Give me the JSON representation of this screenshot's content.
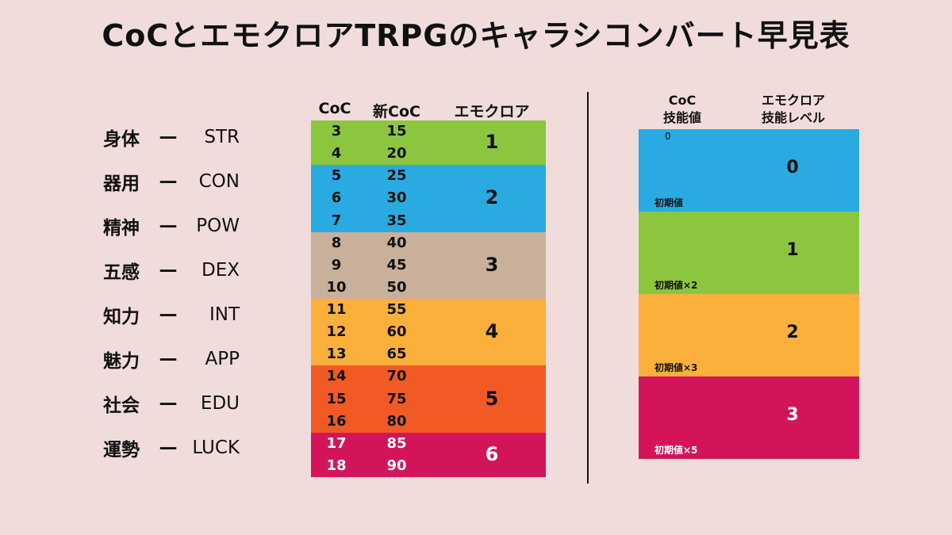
{
  "title": "CoCとエモクロアTRPGのキャラシコンバート早見表",
  "attributes": [
    {
      "ja": "身体",
      "dash": "—",
      "en": "STR"
    },
    {
      "ja": "器用",
      "dash": "—",
      "en": "CON"
    },
    {
      "ja": "精神",
      "dash": "—",
      "en": "POW"
    },
    {
      "ja": "五感",
      "dash": "—",
      "en": "DEX"
    },
    {
      "ja": "知力",
      "dash": "—",
      "en": "INT"
    },
    {
      "ja": "魅力",
      "dash": "—",
      "en": "APP"
    },
    {
      "ja": "社会",
      "dash": "—",
      "en": "EDU"
    },
    {
      "ja": "運勢",
      "dash": "—",
      "en": "LUCK"
    }
  ],
  "table": {
    "headers": {
      "coc": "CoC",
      "new_coc": "新CoC",
      "emoclore": "エモクロア"
    },
    "rows": [
      {
        "coc": "3",
        "new_coc": "15"
      },
      {
        "coc": "4",
        "new_coc": "20"
      },
      {
        "coc": "5",
        "new_coc": "25"
      },
      {
        "coc": "6",
        "new_coc": "30"
      },
      {
        "coc": "7",
        "new_coc": "35"
      },
      {
        "coc": "8",
        "new_coc": "40"
      },
      {
        "coc": "9",
        "new_coc": "45"
      },
      {
        "coc": "10",
        "new_coc": "50"
      },
      {
        "coc": "11",
        "new_coc": "55"
      },
      {
        "coc": "12",
        "new_coc": "60"
      },
      {
        "coc": "13",
        "new_coc": "65"
      },
      {
        "coc": "14",
        "new_coc": "70"
      },
      {
        "coc": "15",
        "new_coc": "75"
      },
      {
        "coc": "16",
        "new_coc": "80"
      },
      {
        "coc": "17",
        "new_coc": "85"
      },
      {
        "coc": "18",
        "new_coc": "90"
      }
    ],
    "groups": [
      {
        "level": "1",
        "color": "#8cc63f",
        "text_color": "#111111",
        "row_count": 2
      },
      {
        "level": "2",
        "color": "#29abe2",
        "text_color": "#111111",
        "row_count": 3
      },
      {
        "level": "3",
        "color": "#c8b09a",
        "text_color": "#111111",
        "row_count": 3
      },
      {
        "level": "4",
        "color": "#fbb03b",
        "text_color": "#111111",
        "row_count": 3
      },
      {
        "level": "5",
        "color": "#f15a24",
        "text_color": "#111111",
        "row_count": 3
      },
      {
        "level": "6",
        "color": "#d4145a",
        "text_color": "#ffffff",
        "row_count": 2
      }
    ]
  },
  "skill": {
    "header_coc": [
      "CoC",
      "技能値"
    ],
    "header_emo": [
      "エモクロア",
      "技能レベル"
    ],
    "zero_value": "0",
    "blocks": [
      {
        "level": "0",
        "note": "初期値",
        "color": "#29abe2",
        "text_color": "#111111"
      },
      {
        "level": "1",
        "note": "初期値×2",
        "color": "#8cc63f",
        "text_color": "#111111"
      },
      {
        "level": "2",
        "note": "初期値×3",
        "color": "#fbb03b",
        "text_color": "#111111"
      },
      {
        "level": "3",
        "note": "初期値×5",
        "color": "#d4145a",
        "text_color": "#ffffff"
      }
    ]
  }
}
